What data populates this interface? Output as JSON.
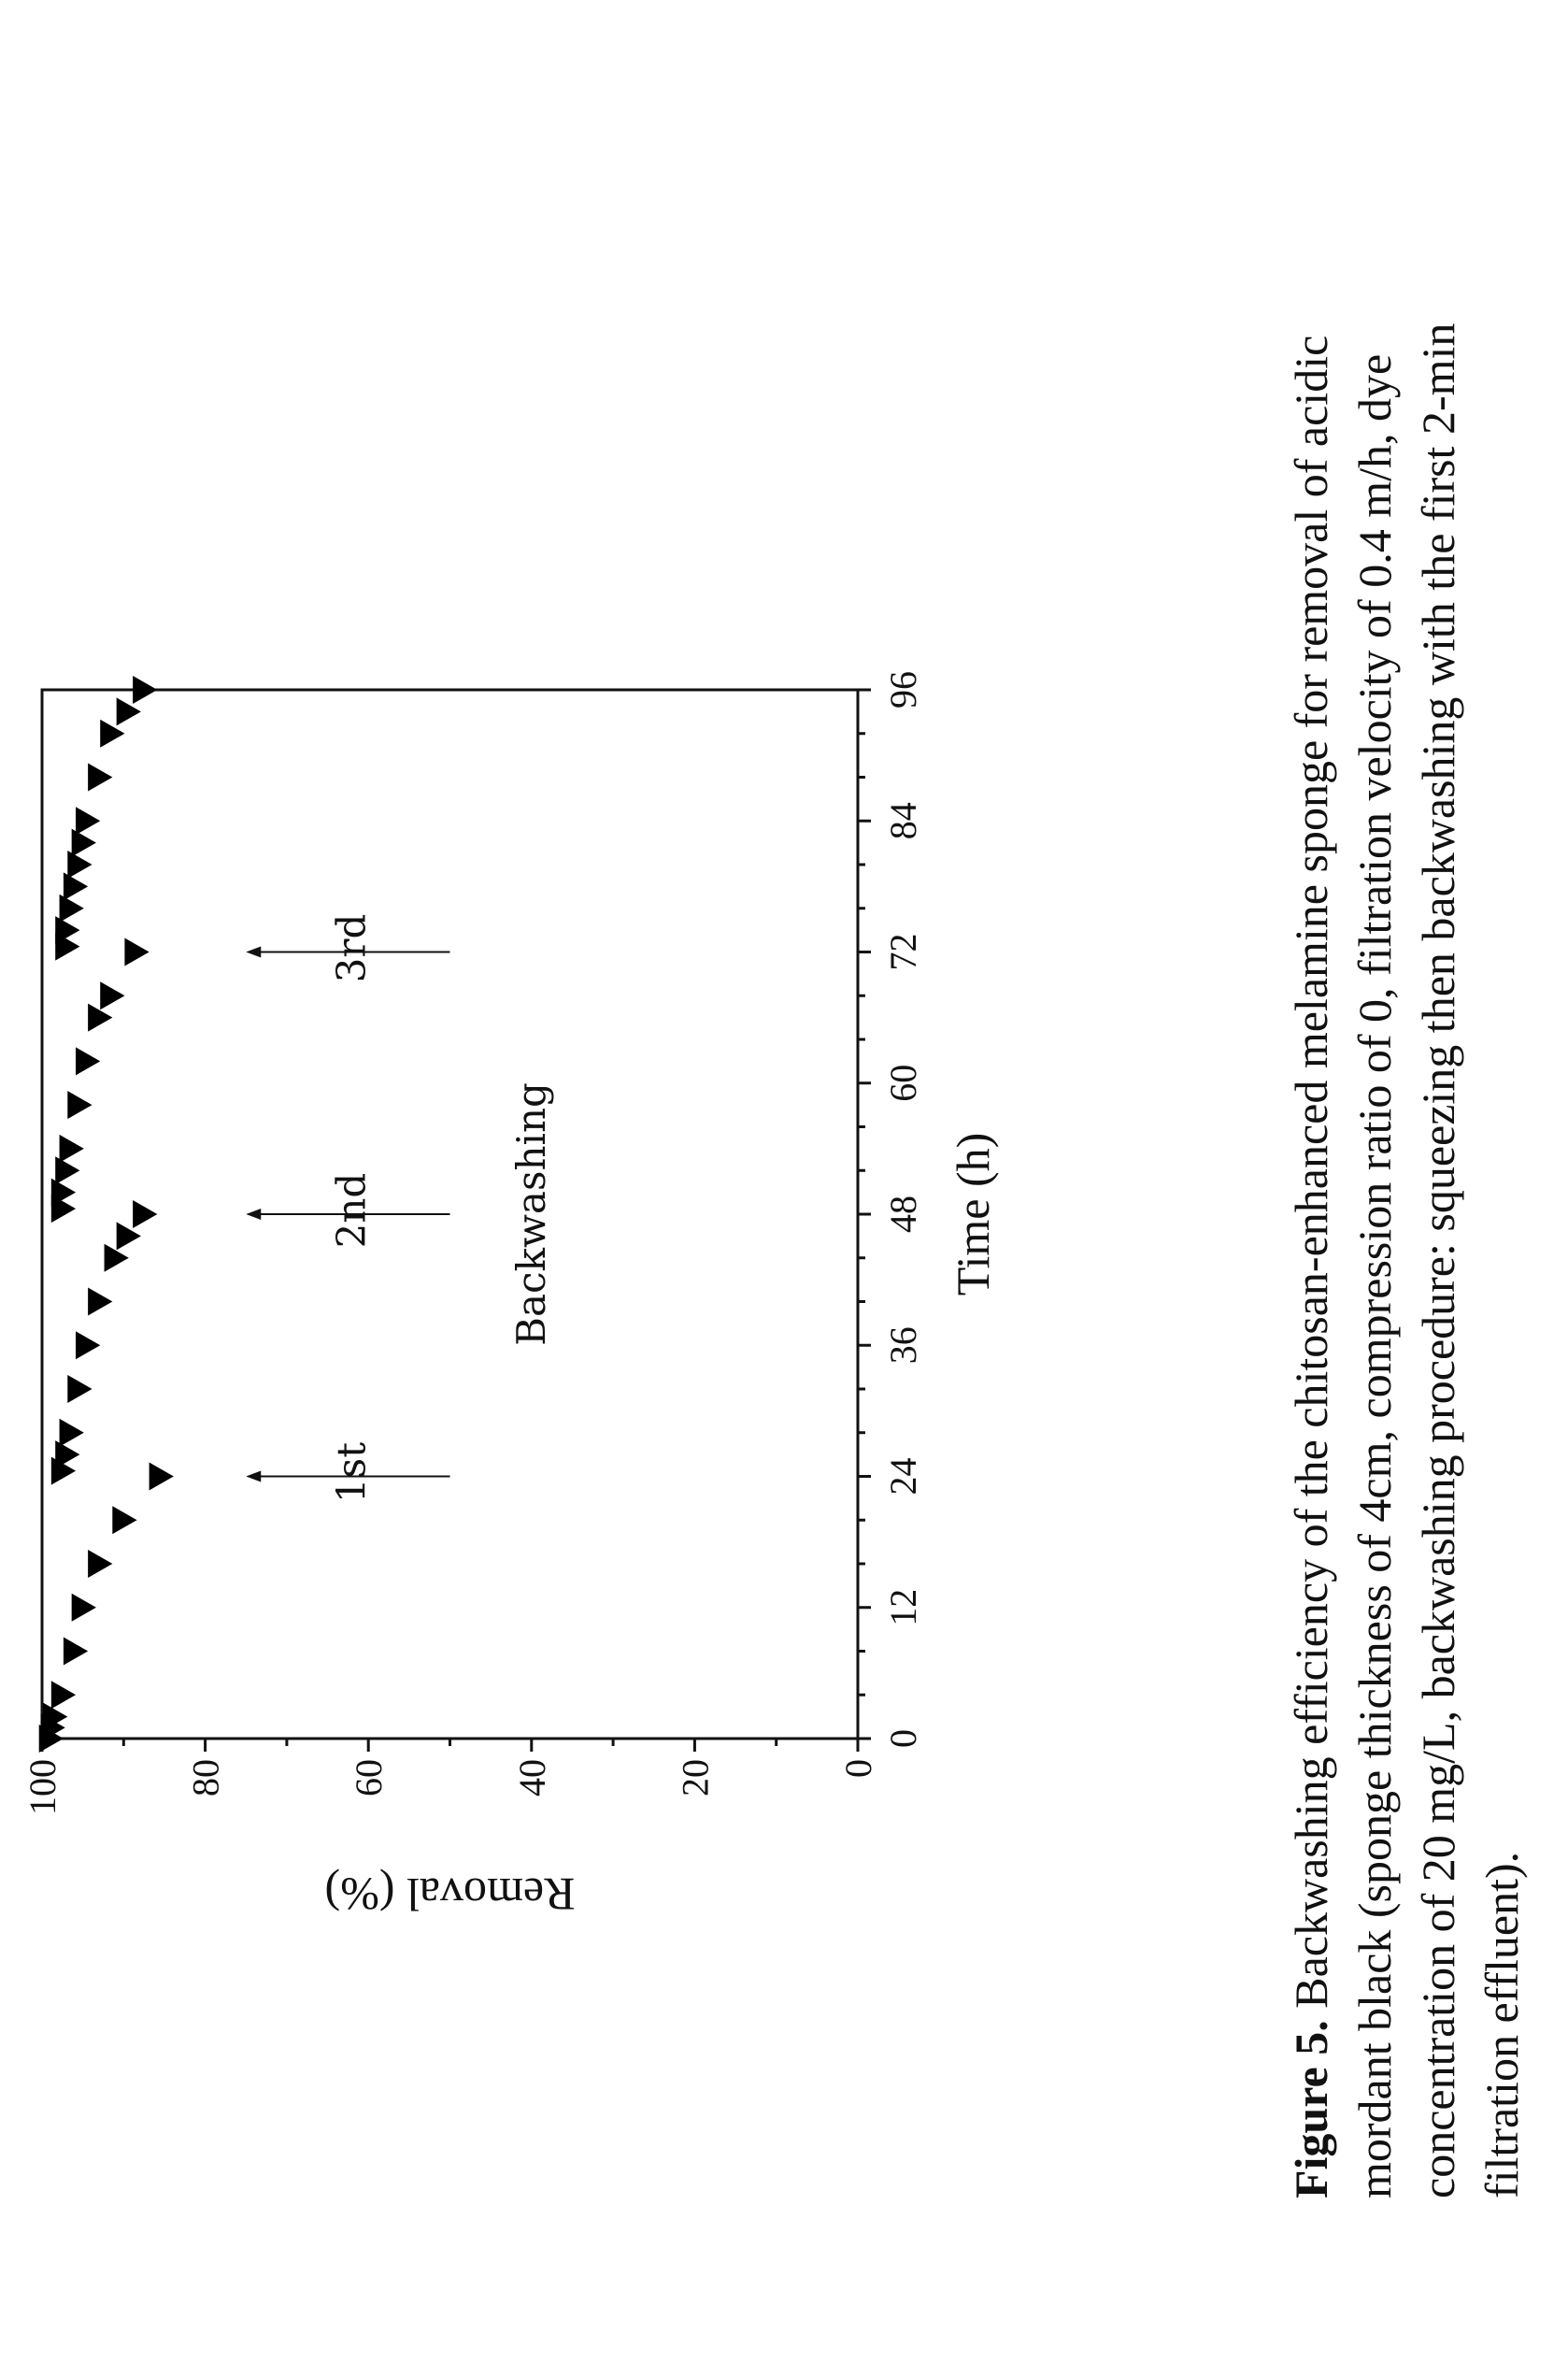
{
  "chart_data": {
    "type": "scatter",
    "xlabel": "Time (h)",
    "ylabel": "Removal (%)",
    "xlim": [
      0,
      96
    ],
    "ylim": [
      0,
      100
    ],
    "x_ticks": [
      "0",
      "12",
      "24",
      "36",
      "48",
      "60",
      "72",
      "84",
      "96"
    ],
    "y_ticks": [
      "0",
      "20",
      "40",
      "60",
      "80",
      "100"
    ],
    "grid": false,
    "legend": "none",
    "marker": "triangle-down",
    "marker_color": "#000000",
    "series": [
      {
        "x": [
          0,
          1,
          2,
          4,
          8,
          12,
          16,
          20,
          24,
          24.5,
          26,
          28,
          32,
          36,
          40,
          44,
          46,
          48,
          48.5,
          50,
          52,
          54,
          58,
          62,
          66,
          68,
          72,
          72.5,
          74,
          76,
          78,
          80,
          82,
          84,
          88,
          92,
          94,
          96
        ],
        "y": [
          99,
          98.8,
          98.5,
          97.5,
          96,
          95,
          93,
          90,
          85.5,
          97.5,
          97,
          96.5,
          95.5,
          94.5,
          93,
          91,
          89.5,
          87.5,
          97.5,
          97.5,
          97,
          96.5,
          95.5,
          94.5,
          93,
          91.5,
          88.5,
          97,
          97,
          96.5,
          96,
          95.5,
          95,
          94.5,
          93,
          91.5,
          89.5,
          87.5
        ]
      }
    ],
    "annotations": [
      {
        "label": "1st",
        "x": 24,
        "arrow_from_y": 50,
        "arrow_to_y": 75
      },
      {
        "label": "2nd",
        "x": 48,
        "arrow_from_y": 50,
        "arrow_to_y": 75
      },
      {
        "label": "3rd",
        "x": 72,
        "arrow_from_y": 50,
        "arrow_to_y": 75
      }
    ],
    "group_label": "Backwashing"
  },
  "caption": {
    "bold": "Figure 5.",
    "lines": [
      " Backwashing efficiency of the chitosan-enhanced melamine sponge for removal of acidic",
      "mordant black (sponge thickness of 4cm, compression ratio of 0, filtration velocity of 0.4 m/h, dye",
      "concentration of 20 mg/L, backwashing procedure: squeezing then backwashing with the first 2-min",
      "filtration effluent)."
    ]
  }
}
